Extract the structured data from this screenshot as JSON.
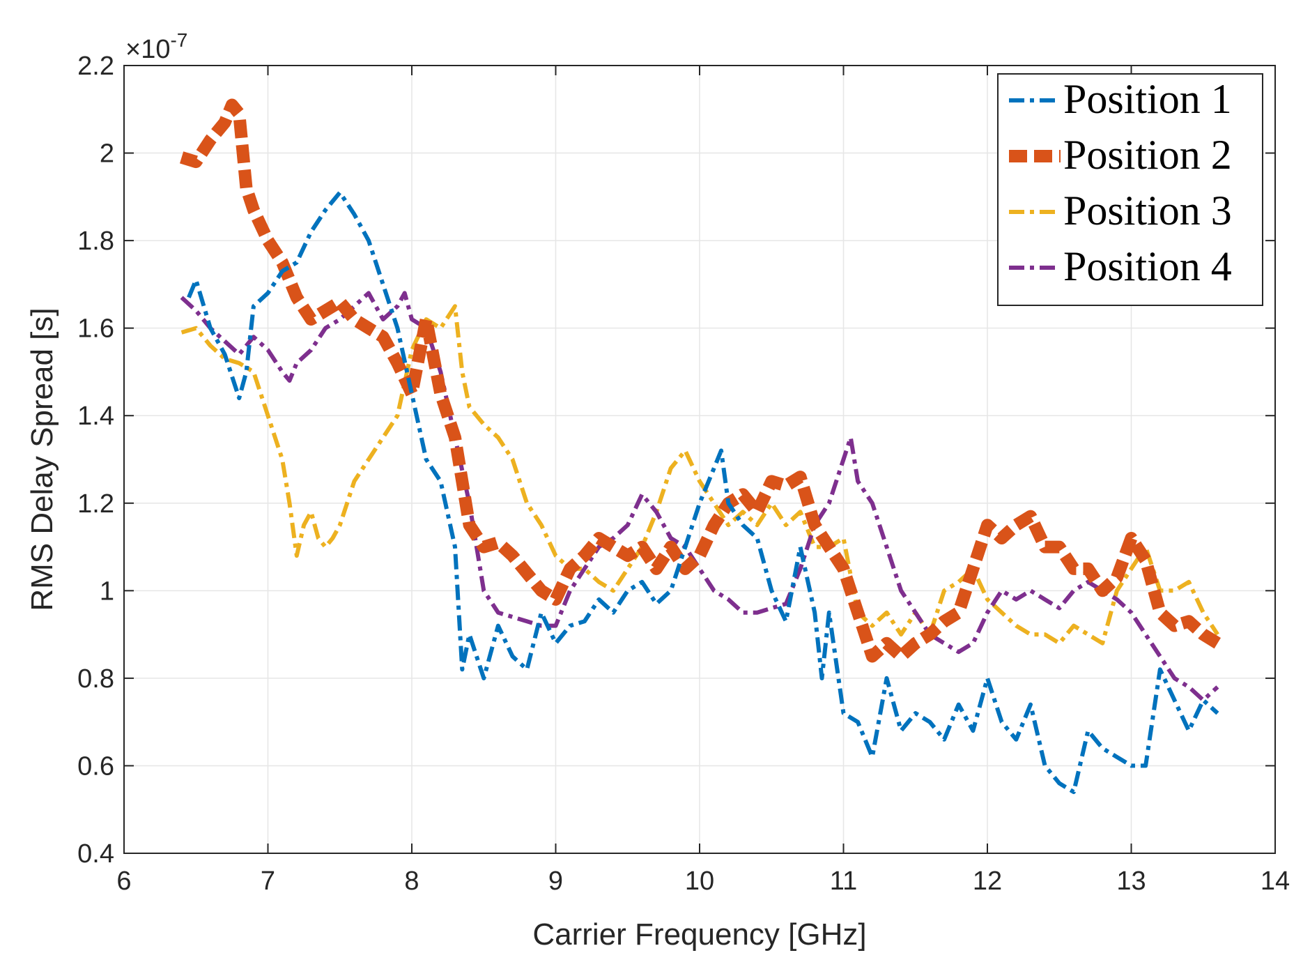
{
  "chart_data": {
    "type": "line",
    "title": "",
    "xlabel": "Carrier Frequency [GHz]",
    "ylabel": "RMS Delay Spread [s]",
    "xlim": [
      6,
      14
    ],
    "ylim": [
      0.4,
      2.2
    ],
    "y_multiplier_label": "×10",
    "y_multiplier_exponent": "-7",
    "xticks": [
      "6",
      "7",
      "8",
      "9",
      "10",
      "11",
      "12",
      "13",
      "14"
    ],
    "yticks": [
      "0.4",
      "0.6",
      "0.8",
      "1",
      "1.2",
      "1.4",
      "1.6",
      "1.8",
      "2",
      "2.2"
    ],
    "grid": true,
    "legend_position": "top-right",
    "series": [
      {
        "name": "Position 1",
        "color": "#0072bd",
        "style": "dash-dot",
        "x": [
          6.45,
          6.5,
          6.6,
          6.7,
          6.8,
          6.85,
          6.9,
          7.0,
          7.1,
          7.2,
          7.3,
          7.4,
          7.5,
          7.6,
          7.7,
          7.8,
          7.9,
          8.0,
          8.1,
          8.2,
          8.3,
          8.35,
          8.4,
          8.5,
          8.6,
          8.7,
          8.8,
          8.9,
          9.0,
          9.1,
          9.2,
          9.3,
          9.4,
          9.5,
          9.6,
          9.7,
          9.8,
          9.9,
          10.0,
          10.1,
          10.15,
          10.2,
          10.3,
          10.4,
          10.5,
          10.6,
          10.7,
          10.8,
          10.85,
          10.9,
          11.0,
          11.1,
          11.2,
          11.3,
          11.4,
          11.5,
          11.6,
          11.7,
          11.8,
          11.9,
          12.0,
          12.1,
          12.2,
          12.3,
          12.4,
          12.5,
          12.6,
          12.7,
          12.8,
          12.9,
          13.0,
          13.1,
          13.2,
          13.3,
          13.4,
          13.5,
          13.6
        ],
        "values": [
          1.67,
          1.71,
          1.6,
          1.54,
          1.44,
          1.5,
          1.65,
          1.68,
          1.73,
          1.75,
          1.82,
          1.87,
          1.91,
          1.86,
          1.8,
          1.7,
          1.6,
          1.45,
          1.3,
          1.25,
          1.1,
          0.82,
          0.9,
          0.8,
          0.92,
          0.85,
          0.82,
          0.95,
          0.88,
          0.92,
          0.93,
          0.98,
          0.95,
          1.0,
          1.02,
          0.97,
          1.0,
          1.1,
          1.2,
          1.28,
          1.32,
          1.2,
          1.15,
          1.12,
          1.0,
          0.93,
          1.1,
          0.95,
          0.8,
          0.95,
          0.72,
          0.7,
          0.62,
          0.8,
          0.68,
          0.72,
          0.7,
          0.66,
          0.74,
          0.68,
          0.8,
          0.7,
          0.66,
          0.74,
          0.6,
          0.56,
          0.54,
          0.68,
          0.64,
          0.62,
          0.6,
          0.6,
          0.82,
          0.75,
          0.68,
          0.75,
          0.72
        ]
      },
      {
        "name": "Position 2",
        "color": "#d95319",
        "style": "thick-dash",
        "x": [
          6.4,
          6.5,
          6.6,
          6.7,
          6.75,
          6.8,
          6.85,
          6.9,
          7.0,
          7.1,
          7.2,
          7.3,
          7.4,
          7.5,
          7.6,
          7.7,
          7.8,
          7.9,
          8.0,
          8.1,
          8.2,
          8.3,
          8.4,
          8.5,
          8.6,
          8.7,
          8.8,
          8.9,
          9.0,
          9.1,
          9.2,
          9.3,
          9.4,
          9.5,
          9.6,
          9.7,
          9.8,
          9.9,
          10.0,
          10.1,
          10.2,
          10.3,
          10.4,
          10.5,
          10.6,
          10.7,
          10.8,
          10.9,
          11.0,
          11.1,
          11.2,
          11.3,
          11.4,
          11.5,
          11.6,
          11.7,
          11.8,
          11.9,
          12.0,
          12.1,
          12.2,
          12.3,
          12.4,
          12.5,
          12.6,
          12.7,
          12.8,
          12.9,
          13.0,
          13.1,
          13.2,
          13.3,
          13.4,
          13.5,
          13.6
        ],
        "values": [
          1.99,
          1.98,
          2.03,
          2.07,
          2.11,
          2.09,
          1.92,
          1.87,
          1.8,
          1.75,
          1.67,
          1.62,
          1.64,
          1.66,
          1.62,
          1.6,
          1.58,
          1.52,
          1.45,
          1.62,
          1.45,
          1.35,
          1.15,
          1.1,
          1.11,
          1.08,
          1.04,
          1.0,
          0.98,
          1.05,
          1.08,
          1.12,
          1.1,
          1.08,
          1.1,
          1.05,
          1.1,
          1.05,
          1.08,
          1.15,
          1.2,
          1.22,
          1.18,
          1.25,
          1.24,
          1.26,
          1.15,
          1.1,
          1.05,
          0.95,
          0.85,
          0.88,
          0.85,
          0.88,
          0.9,
          0.93,
          0.95,
          1.05,
          1.15,
          1.12,
          1.15,
          1.17,
          1.1,
          1.1,
          1.05,
          1.05,
          1.0,
          1.03,
          1.12,
          1.07,
          0.95,
          0.92,
          0.93,
          0.9,
          0.88
        ]
      },
      {
        "name": "Position 3",
        "color": "#edb120",
        "style": "dash-dot",
        "x": [
          6.4,
          6.5,
          6.6,
          6.7,
          6.8,
          6.9,
          7.0,
          7.1,
          7.15,
          7.2,
          7.25,
          7.3,
          7.35,
          7.4,
          7.45,
          7.5,
          7.6,
          7.7,
          7.8,
          7.9,
          8.0,
          8.1,
          8.2,
          8.3,
          8.35,
          8.4,
          8.5,
          8.6,
          8.7,
          8.8,
          8.9,
          9.0,
          9.1,
          9.2,
          9.3,
          9.4,
          9.5,
          9.6,
          9.7,
          9.8,
          9.9,
          10.0,
          10.1,
          10.2,
          10.3,
          10.4,
          10.5,
          10.6,
          10.7,
          10.8,
          10.9,
          11.0,
          11.1,
          11.2,
          11.3,
          11.4,
          11.5,
          11.6,
          11.7,
          11.8,
          11.9,
          12.0,
          12.1,
          12.2,
          12.3,
          12.4,
          12.5,
          12.6,
          12.7,
          12.8,
          12.9,
          13.0,
          13.1,
          13.2,
          13.3,
          13.4,
          13.5,
          13.6
        ],
        "values": [
          1.59,
          1.6,
          1.56,
          1.53,
          1.52,
          1.5,
          1.4,
          1.3,
          1.2,
          1.08,
          1.15,
          1.18,
          1.12,
          1.1,
          1.12,
          1.15,
          1.25,
          1.3,
          1.35,
          1.4,
          1.55,
          1.62,
          1.6,
          1.65,
          1.5,
          1.42,
          1.38,
          1.35,
          1.3,
          1.2,
          1.15,
          1.08,
          1.05,
          1.05,
          1.02,
          1.0,
          1.05,
          1.1,
          1.18,
          1.28,
          1.32,
          1.25,
          1.2,
          1.15,
          1.18,
          1.15,
          1.2,
          1.15,
          1.18,
          1.1,
          1.1,
          1.12,
          0.95,
          0.92,
          0.95,
          0.9,
          0.95,
          0.9,
          1.0,
          1.02,
          1.05,
          0.98,
          0.95,
          0.92,
          0.9,
          0.9,
          0.88,
          0.92,
          0.9,
          0.88,
          1.0,
          1.05,
          1.1,
          1.0,
          1.0,
          1.02,
          0.95,
          0.9
        ]
      },
      {
        "name": "Position 4",
        "color": "#7e2f8e",
        "style": "dash-dot",
        "x": [
          6.4,
          6.5,
          6.6,
          6.7,
          6.8,
          6.9,
          7.0,
          7.1,
          7.15,
          7.2,
          7.3,
          7.4,
          7.5,
          7.6,
          7.7,
          7.8,
          7.9,
          7.95,
          8.0,
          8.1,
          8.2,
          8.3,
          8.4,
          8.5,
          8.6,
          8.7,
          8.8,
          8.9,
          9.0,
          9.1,
          9.2,
          9.3,
          9.4,
          9.5,
          9.6,
          9.7,
          9.8,
          9.9,
          10.0,
          10.1,
          10.2,
          10.3,
          10.4,
          10.5,
          10.6,
          10.7,
          10.8,
          10.9,
          11.0,
          11.05,
          11.1,
          11.2,
          11.3,
          11.4,
          11.5,
          11.6,
          11.7,
          11.8,
          11.9,
          12.0,
          12.1,
          12.2,
          12.3,
          12.4,
          12.5,
          12.6,
          12.7,
          12.8,
          12.9,
          13.0,
          13.1,
          13.2,
          13.3,
          13.4,
          13.5,
          13.6
        ],
        "values": [
          1.67,
          1.64,
          1.6,
          1.57,
          1.54,
          1.58,
          1.55,
          1.5,
          1.48,
          1.52,
          1.55,
          1.6,
          1.62,
          1.65,
          1.68,
          1.62,
          1.65,
          1.68,
          1.62,
          1.6,
          1.5,
          1.35,
          1.2,
          1.0,
          0.95,
          0.94,
          0.93,
          0.92,
          0.92,
          1.0,
          1.05,
          1.1,
          1.12,
          1.15,
          1.22,
          1.18,
          1.12,
          1.1,
          1.05,
          1.0,
          0.98,
          0.95,
          0.95,
          0.96,
          0.97,
          1.05,
          1.15,
          1.2,
          1.3,
          1.35,
          1.25,
          1.2,
          1.1,
          1.0,
          0.95,
          0.9,
          0.88,
          0.86,
          0.88,
          0.95,
          1.0,
          0.98,
          1.0,
          0.98,
          0.96,
          1.0,
          1.02,
          1.0,
          0.98,
          0.95,
          0.9,
          0.85,
          0.8,
          0.78,
          0.75,
          0.78
        ]
      }
    ]
  }
}
